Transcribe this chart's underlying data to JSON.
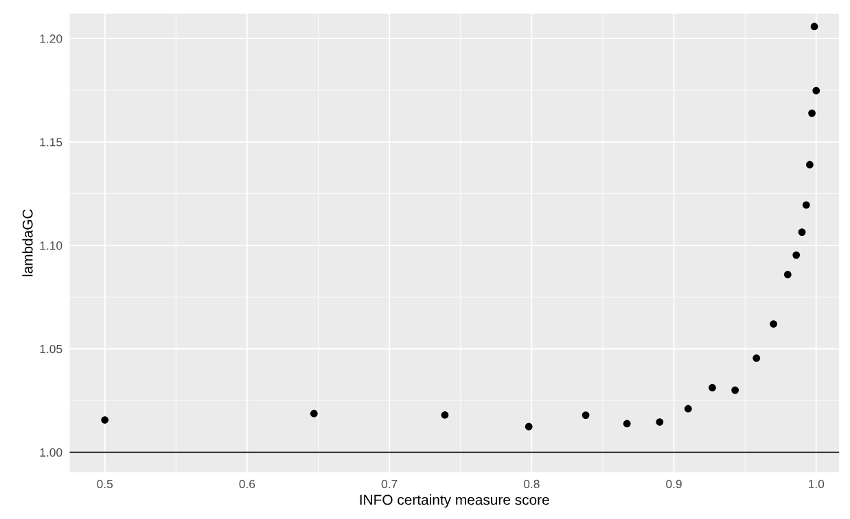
{
  "chart_data": {
    "type": "scatter",
    "xlabel": "INFO certainty measure score",
    "ylabel": "lambdaGC",
    "x": [
      0.5,
      0.647,
      0.739,
      0.798,
      0.838,
      0.867,
      0.89,
      0.91,
      0.927,
      0.943,
      0.958,
      0.97,
      0.98,
      0.986,
      0.99,
      0.993,
      0.9955,
      0.997,
      0.9987,
      1.0
    ],
    "values": [
      1.0156,
      1.0187,
      1.018,
      1.0124,
      1.0179,
      1.0138,
      1.0146,
      1.021,
      1.0312,
      1.03,
      1.0455,
      1.062,
      1.0859,
      1.0953,
      1.1064,
      1.1195,
      1.139,
      1.1639,
      1.2058,
      1.1748
    ],
    "color": "#000000",
    "marker": "circle",
    "xlim": [
      0.4753,
      1.016
    ],
    "ylim": [
      0.9903,
      1.2121
    ],
    "xticks": [
      {
        "value": 0.5,
        "label": "0.5"
      },
      {
        "value": 0.6,
        "label": "0.6"
      },
      {
        "value": 0.7,
        "label": "0.7"
      },
      {
        "value": 0.8,
        "label": "0.8"
      },
      {
        "value": 0.9,
        "label": "0.9"
      },
      {
        "value": 1.0,
        "label": "1.0"
      }
    ],
    "yticks": [
      {
        "value": 1.0,
        "label": "1.00"
      },
      {
        "value": 1.05,
        "label": "1.05"
      },
      {
        "value": 1.1,
        "label": "1.10"
      },
      {
        "value": 1.15,
        "label": "1.15"
      },
      {
        "value": 1.2,
        "label": "1.20"
      }
    ],
    "ref_lines": [
      {
        "axis": "y",
        "value": 1.0,
        "color": "#000000",
        "line_style": "solid"
      }
    ],
    "grid": true
  }
}
